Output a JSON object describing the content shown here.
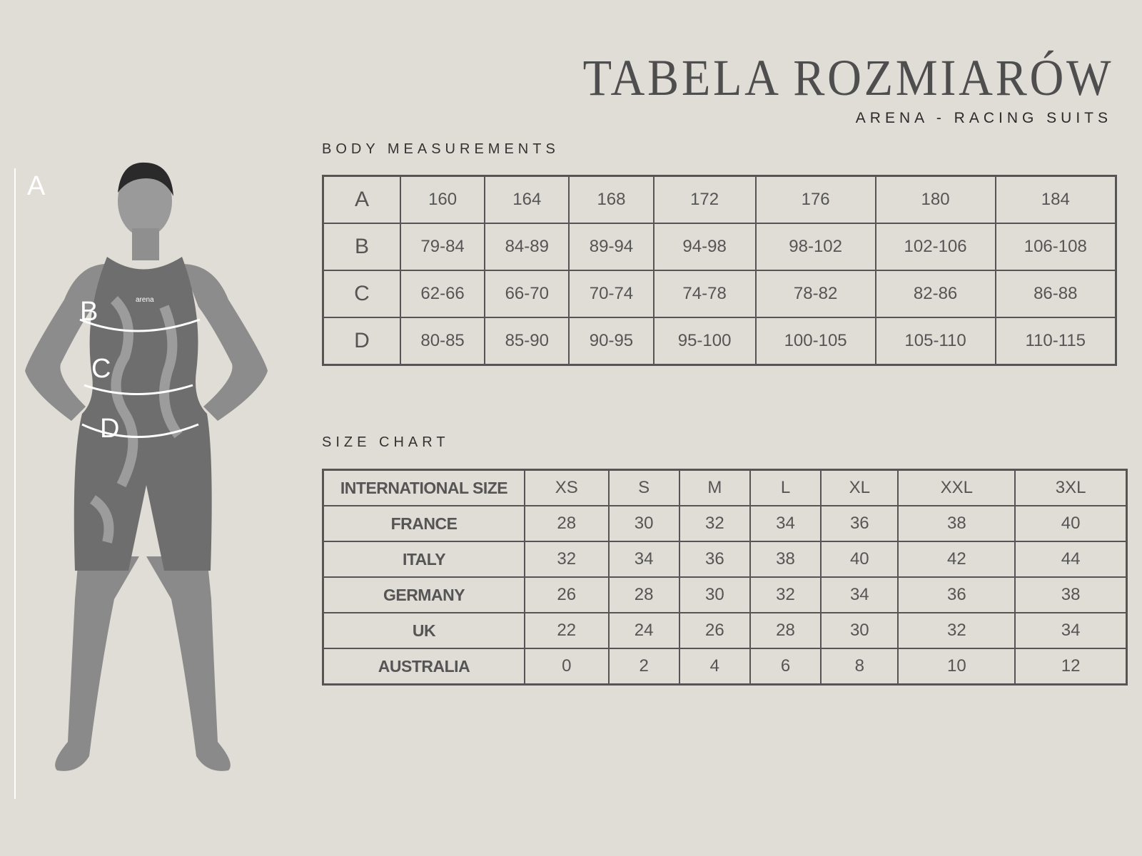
{
  "header": {
    "title": "TABELA ROZMIARÓW",
    "subtitle": "ARENA - RACING SUITS"
  },
  "body_measurements": {
    "heading": "BODY MEASUREMENTS",
    "rows": [
      {
        "key": "A",
        "values": [
          "160",
          "164",
          "168",
          "172",
          "176",
          "180",
          "184"
        ]
      },
      {
        "key": "B",
        "values": [
          "79-84",
          "84-89",
          "89-94",
          "94-98",
          "98-102",
          "102-106",
          "106-108"
        ]
      },
      {
        "key": "C",
        "values": [
          "62-66",
          "66-70",
          "70-74",
          "74-78",
          "78-82",
          "82-86",
          "86-88"
        ]
      },
      {
        "key": "D",
        "values": [
          "80-85",
          "85-90",
          "90-95",
          "95-100",
          "100-105",
          "105-110",
          "110-115"
        ]
      }
    ]
  },
  "size_chart": {
    "heading": "SIZE CHART",
    "rows": [
      {
        "key": "INTERNATIONAL SIZE",
        "values": [
          "XS",
          "S",
          "M",
          "L",
          "XL",
          "XXL",
          "3XL"
        ]
      },
      {
        "key": "FRANCE",
        "values": [
          "28",
          "30",
          "32",
          "34",
          "36",
          "38",
          "40"
        ]
      },
      {
        "key": "ITALY",
        "values": [
          "32",
          "34",
          "36",
          "38",
          "40",
          "42",
          "44"
        ]
      },
      {
        "key": "GERMANY",
        "values": [
          "26",
          "28",
          "30",
          "32",
          "34",
          "36",
          "38"
        ]
      },
      {
        "key": "UK",
        "values": [
          "22",
          "24",
          "26",
          "28",
          "30",
          "32",
          "34"
        ]
      },
      {
        "key": "AUSTRALIA",
        "values": [
          "0",
          "2",
          "4",
          "6",
          "8",
          "10",
          "12"
        ]
      }
    ]
  },
  "figure": {
    "labels": [
      "A",
      "B",
      "C",
      "D"
    ],
    "logo": "arena"
  },
  "colors": {
    "background": "#e0dcd6",
    "text": "#555555",
    "border": "#555555"
  }
}
